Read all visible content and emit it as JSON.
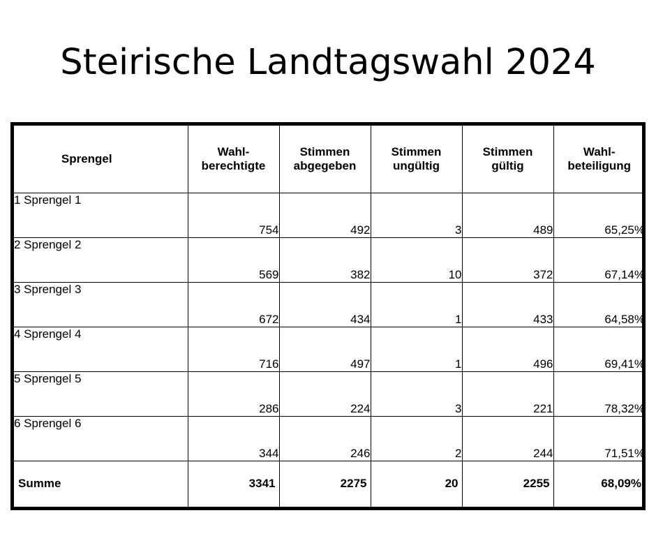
{
  "title": "Steirische Landtagswahl 2024",
  "table": {
    "headers": [
      "Sprengel",
      "Wahl-\nberechtigte",
      "Stimmen\nabgegeben",
      "Stimmen\nungültig",
      "Stimmen\ngültig",
      "Wahl-\nbeteiligung"
    ],
    "rows": [
      {
        "name": "1 Sprengel 1",
        "wahlberechtigte": "754",
        "abgegeben": "492",
        "ungueltig": "3",
        "gueltig": "489",
        "beteiligung": "65,25%"
      },
      {
        "name": "2 Sprengel 2",
        "wahlberechtigte": "569",
        "abgegeben": "382",
        "ungueltig": "10",
        "gueltig": "372",
        "beteiligung": "67,14%"
      },
      {
        "name": "3 Sprengel 3",
        "wahlberechtigte": "672",
        "abgegeben": "434",
        "ungueltig": "1",
        "gueltig": "433",
        "beteiligung": "64,58%"
      },
      {
        "name": "4 Sprengel 4",
        "wahlberechtigte": "716",
        "abgegeben": "497",
        "ungueltig": "1",
        "gueltig": "496",
        "beteiligung": "69,41%"
      },
      {
        "name": "5 Sprengel 5",
        "wahlberechtigte": "286",
        "abgegeben": "224",
        "ungueltig": "3",
        "gueltig": "221",
        "beteiligung": "78,32%"
      },
      {
        "name": "6 Sprengel 6",
        "wahlberechtigte": "344",
        "abgegeben": "246",
        "ungueltig": "2",
        "gueltig": "244",
        "beteiligung": "71,51%"
      }
    ],
    "summary": {
      "name": "Summe",
      "wahlberechtigte": "3341",
      "abgegeben": "2275",
      "ungueltig": "20",
      "gueltig": "2255",
      "beteiligung": "68,09%"
    }
  }
}
